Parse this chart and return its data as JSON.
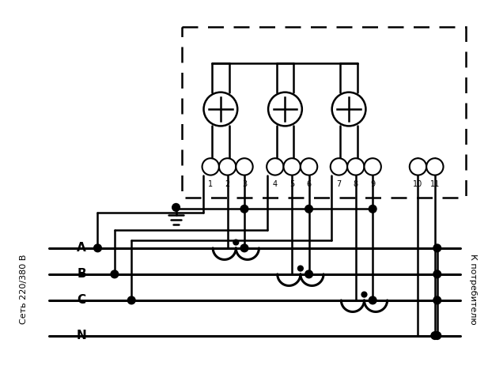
{
  "bg": "#ffffff",
  "lc": "#000000",
  "fig_w": 6.17,
  "fig_h": 4.82,
  "dpi": 100,
  "label_left": "Сеть 220/380 В",
  "label_right": "К потребителю",
  "phase_labels": [
    "A",
    "B",
    "C",
    "N"
  ],
  "term_labels": [
    "1",
    "2",
    "3",
    "4",
    "5",
    "6",
    "7",
    "8",
    "9",
    "10",
    "11"
  ]
}
